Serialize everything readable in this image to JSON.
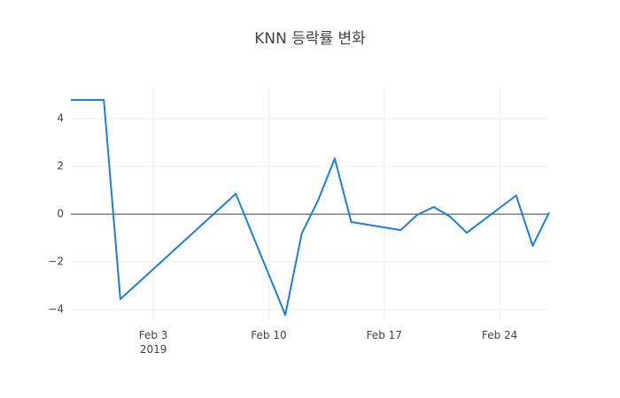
{
  "chart_data": {
    "type": "line",
    "title": "KNN 등락률 변화",
    "x": [
      "2019-01-29",
      "2019-01-31",
      "2019-02-01",
      "2019-02-08",
      "2019-02-11",
      "2019-02-12",
      "2019-02-13",
      "2019-02-14",
      "2019-02-15",
      "2019-02-18",
      "2019-02-19",
      "2019-02-20",
      "2019-02-21",
      "2019-02-22",
      "2019-02-25",
      "2019-02-26",
      "2019-02-27"
    ],
    "series": [
      {
        "color": "#1a7fe0",
        "values": [
          4.78,
          4.78,
          -3.56,
          0.85,
          -4.22,
          -0.81,
          0.59,
          2.33,
          -0.33,
          -0.67,
          -0.03,
          0.3,
          -0.11,
          -0.78,
          0.78,
          -1.33,
          0.07
        ]
      }
    ],
    "xlim": [
      "2019-01-29",
      "2019-02-27"
    ],
    "xticks": [
      {
        "value": "2019-02-03",
        "label": "Feb 3\n2019"
      },
      {
        "value": "2019-02-10",
        "label": "Feb 10"
      },
      {
        "value": "2019-02-17",
        "label": "Feb 17"
      },
      {
        "value": "2019-02-24",
        "label": "Feb 24"
      }
    ],
    "ylim": [
      -4.44,
      5.26
    ],
    "yticks": [
      {
        "value": -4,
        "label": "−4"
      },
      {
        "value": -2,
        "label": "−2"
      },
      0,
      2,
      4
    ],
    "grid": true,
    "zero_line": true
  }
}
